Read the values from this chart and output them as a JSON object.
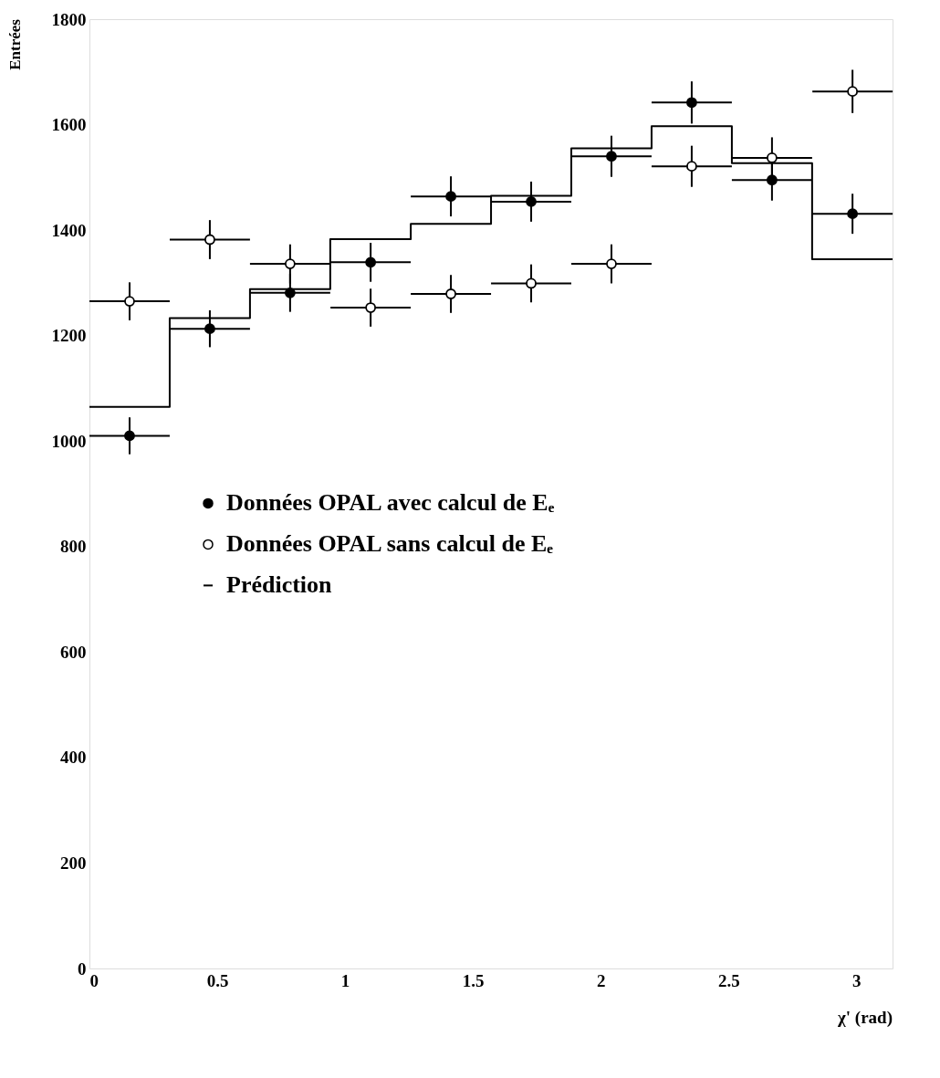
{
  "chart_data": {
    "type": "scatter",
    "xlabel": "χ'   (rad)",
    "ylabel": "Entrées",
    "xlim": [
      0,
      3.1416
    ],
    "ylim": [
      0,
      1800
    ],
    "xticks": [
      0,
      0.5,
      1,
      1.5,
      2,
      2.5,
      3
    ],
    "yticks": [
      0,
      200,
      400,
      600,
      800,
      1000,
      1200,
      1400,
      1600,
      1800
    ],
    "grid": false,
    "legend": "left",
    "marker": "circle",
    "series": [
      {
        "name": "Données OPAL avec calcul de Eₑ",
        "color": "#000000",
        "x": [
          0.157,
          0.471,
          0.785,
          1.1,
          1.414,
          1.728,
          2.042,
          2.356,
          2.67,
          2.985
        ],
        "values": [
          1010,
          1213,
          1281,
          1339,
          1464,
          1454,
          1540,
          1642,
          1495,
          1431
        ],
        "errors": [
          35,
          35,
          36,
          37,
          38,
          38,
          39,
          40,
          39,
          38
        ],
        "xerrors": [
          0.157,
          0.157,
          0.157,
          0.157,
          0.157,
          0.157,
          0.157,
          0.157,
          0.157,
          0.157
        ]
      },
      {
        "name": "Données OPAL sans calcul de Eₑ",
        "color": "#000000",
        "x": [
          0.157,
          0.471,
          0.785,
          1.1,
          1.414,
          1.728,
          2.042,
          2.356,
          2.67,
          2.985
        ],
        "values": [
          1265,
          1382,
          1336,
          1253,
          1279,
          1299,
          1336,
          1521,
          1537,
          1663
        ],
        "errors": [
          36,
          37,
          37,
          36,
          36,
          36,
          37,
          39,
          39,
          41
        ],
        "xerrors": [
          0.157,
          0.157,
          0.157,
          0.157,
          0.157,
          0.157,
          0.157,
          0.157,
          0.157,
          0.157
        ]
      },
      {
        "name": "Prédiction",
        "type": "histogram",
        "color": "#000000",
        "bins": [
          0,
          0.314,
          0.628,
          0.942,
          1.257,
          1.571,
          1.885,
          2.199,
          2.513,
          2.827,
          3.1416
        ],
        "values": [
          1065,
          1233,
          1288,
          1383,
          1412,
          1465,
          1555,
          1597,
          1527,
          1345
        ]
      }
    ]
  }
}
